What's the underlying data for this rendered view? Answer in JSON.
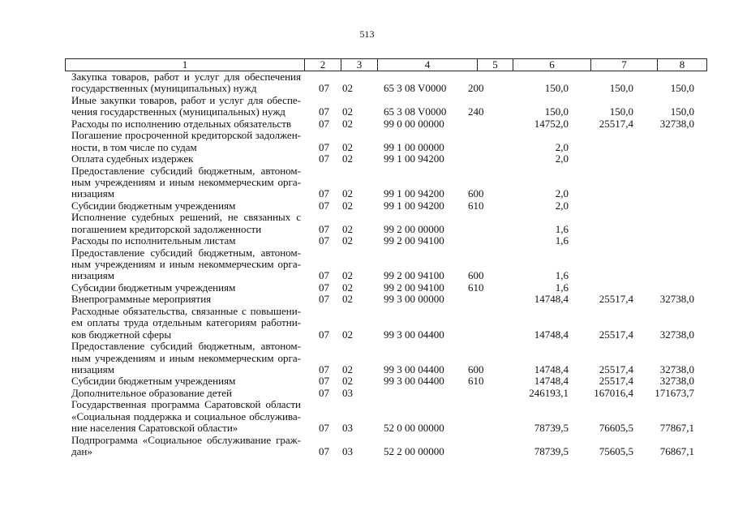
{
  "page_number": "513",
  "header": [
    "1",
    "2",
    "3",
    "4",
    "5",
    "6",
    "7",
    "8"
  ],
  "rows": [
    {
      "desc": [
        "Закупка товаров, работ и услуг для обеспечения",
        "государственных (муниципальных) нужд"
      ],
      "c2": "07",
      "c3": "02",
      "c4": "65 3 08 V0000",
      "c5": "200",
      "c6": "150,0",
      "c7": "150,0",
      "c8": "150,0"
    },
    {
      "desc": [
        "Иные закупки товаров, работ и услуг для обеспе-",
        "чения государственных (муниципальных) нужд"
      ],
      "c2": "07",
      "c3": "02",
      "c4": "65 3 08 V0000",
      "c5": "240",
      "c6": "150,0",
      "c7": "150,0",
      "c8": "150,0"
    },
    {
      "desc": [
        "Расходы по исполнению отдельных обязательств"
      ],
      "c2": "07",
      "c3": "02",
      "c4": "99 0 00 00000",
      "c5": "",
      "c6": "14752,0",
      "c7": "25517,4",
      "c8": "32738,0"
    },
    {
      "desc": [
        "Погашение просроченной кредиторской задолжен-",
        "ности, в том числе по судам"
      ],
      "c2": "07",
      "c3": "02",
      "c4": "99 1 00 00000",
      "c5": "",
      "c6": "2,0",
      "c7": "",
      "c8": ""
    },
    {
      "desc": [
        "Оплата судебных издержек"
      ],
      "c2": "07",
      "c3": "02",
      "c4": "99 1 00 94200",
      "c5": "",
      "c6": "2,0",
      "c7": "",
      "c8": ""
    },
    {
      "desc": [
        "Предоставление субсидий бюджетным, автоном-",
        "ным учреждениям и иным некоммерческим орга-",
        "низациям"
      ],
      "c2": "07",
      "c3": "02",
      "c4": "99 1 00 94200",
      "c5": "600",
      "c6": "2,0",
      "c7": "",
      "c8": ""
    },
    {
      "desc": [
        "Субсидии бюджетным учреждениям"
      ],
      "c2": "07",
      "c3": "02",
      "c4": "99 1 00 94200",
      "c5": "610",
      "c6": "2,0",
      "c7": "",
      "c8": ""
    },
    {
      "desc": [
        "Исполнение судебных решений, не связанных с",
        "погашением кредиторской задолженности"
      ],
      "c2": "07",
      "c3": "02",
      "c4": "99 2 00 00000",
      "c5": "",
      "c6": "1,6",
      "c7": "",
      "c8": ""
    },
    {
      "desc": [
        "Расходы по исполнительным листам"
      ],
      "c2": "07",
      "c3": "02",
      "c4": "99 2 00 94100",
      "c5": "",
      "c6": "1,6",
      "c7": "",
      "c8": ""
    },
    {
      "desc": [
        "Предоставление субсидий бюджетным, автоном-",
        "ным учреждениям и иным некоммерческим орга-",
        "низациям"
      ],
      "c2": "07",
      "c3": "02",
      "c4": "99 2 00 94100",
      "c5": "600",
      "c6": "1,6",
      "c7": "",
      "c8": ""
    },
    {
      "desc": [
        "Субсидии бюджетным учреждениям"
      ],
      "c2": "07",
      "c3": "02",
      "c4": "99 2 00 94100",
      "c5": "610",
      "c6": "1,6",
      "c7": "",
      "c8": ""
    },
    {
      "desc": [
        "Внепрограммные мероприятия"
      ],
      "c2": "07",
      "c3": "02",
      "c4": "99 3 00 00000",
      "c5": "",
      "c6": "14748,4",
      "c7": "25517,4",
      "c8": "32738,0"
    },
    {
      "desc": [
        "Расходные обязательства, связанные с повышени-",
        "ем оплаты труда отдельным категориям работни-",
        "ков бюджетной сферы"
      ],
      "c2": "07",
      "c3": "02",
      "c4": "99 3 00 04400",
      "c5": "",
      "c6": "14748,4",
      "c7": "25517,4",
      "c8": "32738,0"
    },
    {
      "desc": [
        "Предоставление субсидий бюджетным, автоном-",
        "ным учреждениям и иным некоммерческим орга-",
        "низациям"
      ],
      "c2": "07",
      "c3": "02",
      "c4": "99 3 00 04400",
      "c5": "600",
      "c6": "14748,4",
      "c7": "25517,4",
      "c8": "32738,0"
    },
    {
      "desc": [
        "Субсидии бюджетным учреждениям"
      ],
      "c2": "07",
      "c3": "02",
      "c4": "99 3 00 04400",
      "c5": "610",
      "c6": "14748,4",
      "c7": "25517,4",
      "c8": "32738,0"
    },
    {
      "desc": [
        "Дополнительное образование детей"
      ],
      "c2": "07",
      "c3": "03",
      "c4": "",
      "c5": "",
      "c6": "246193,1",
      "c7": "167016,4",
      "c8": "171673,7"
    },
    {
      "desc": [
        "Государственная программа Саратовской области",
        "«Социальная поддержка и социальное обслужива-",
        "ние населения Саратовской области»"
      ],
      "c2": "07",
      "c3": "03",
      "c4": "52 0 00 00000",
      "c5": "",
      "c6": "78739,5",
      "c7": "76605,5",
      "c8": "77867,1"
    },
    {
      "desc": [
        "Подпрограмма «Социальное обслуживание граж-",
        "дан»"
      ],
      "c2": "07",
      "c3": "03",
      "c4": "52 2 00 00000",
      "c5": "",
      "c6": "78739,5",
      "c7": "75605,5",
      "c8": "76867,1"
    }
  ]
}
